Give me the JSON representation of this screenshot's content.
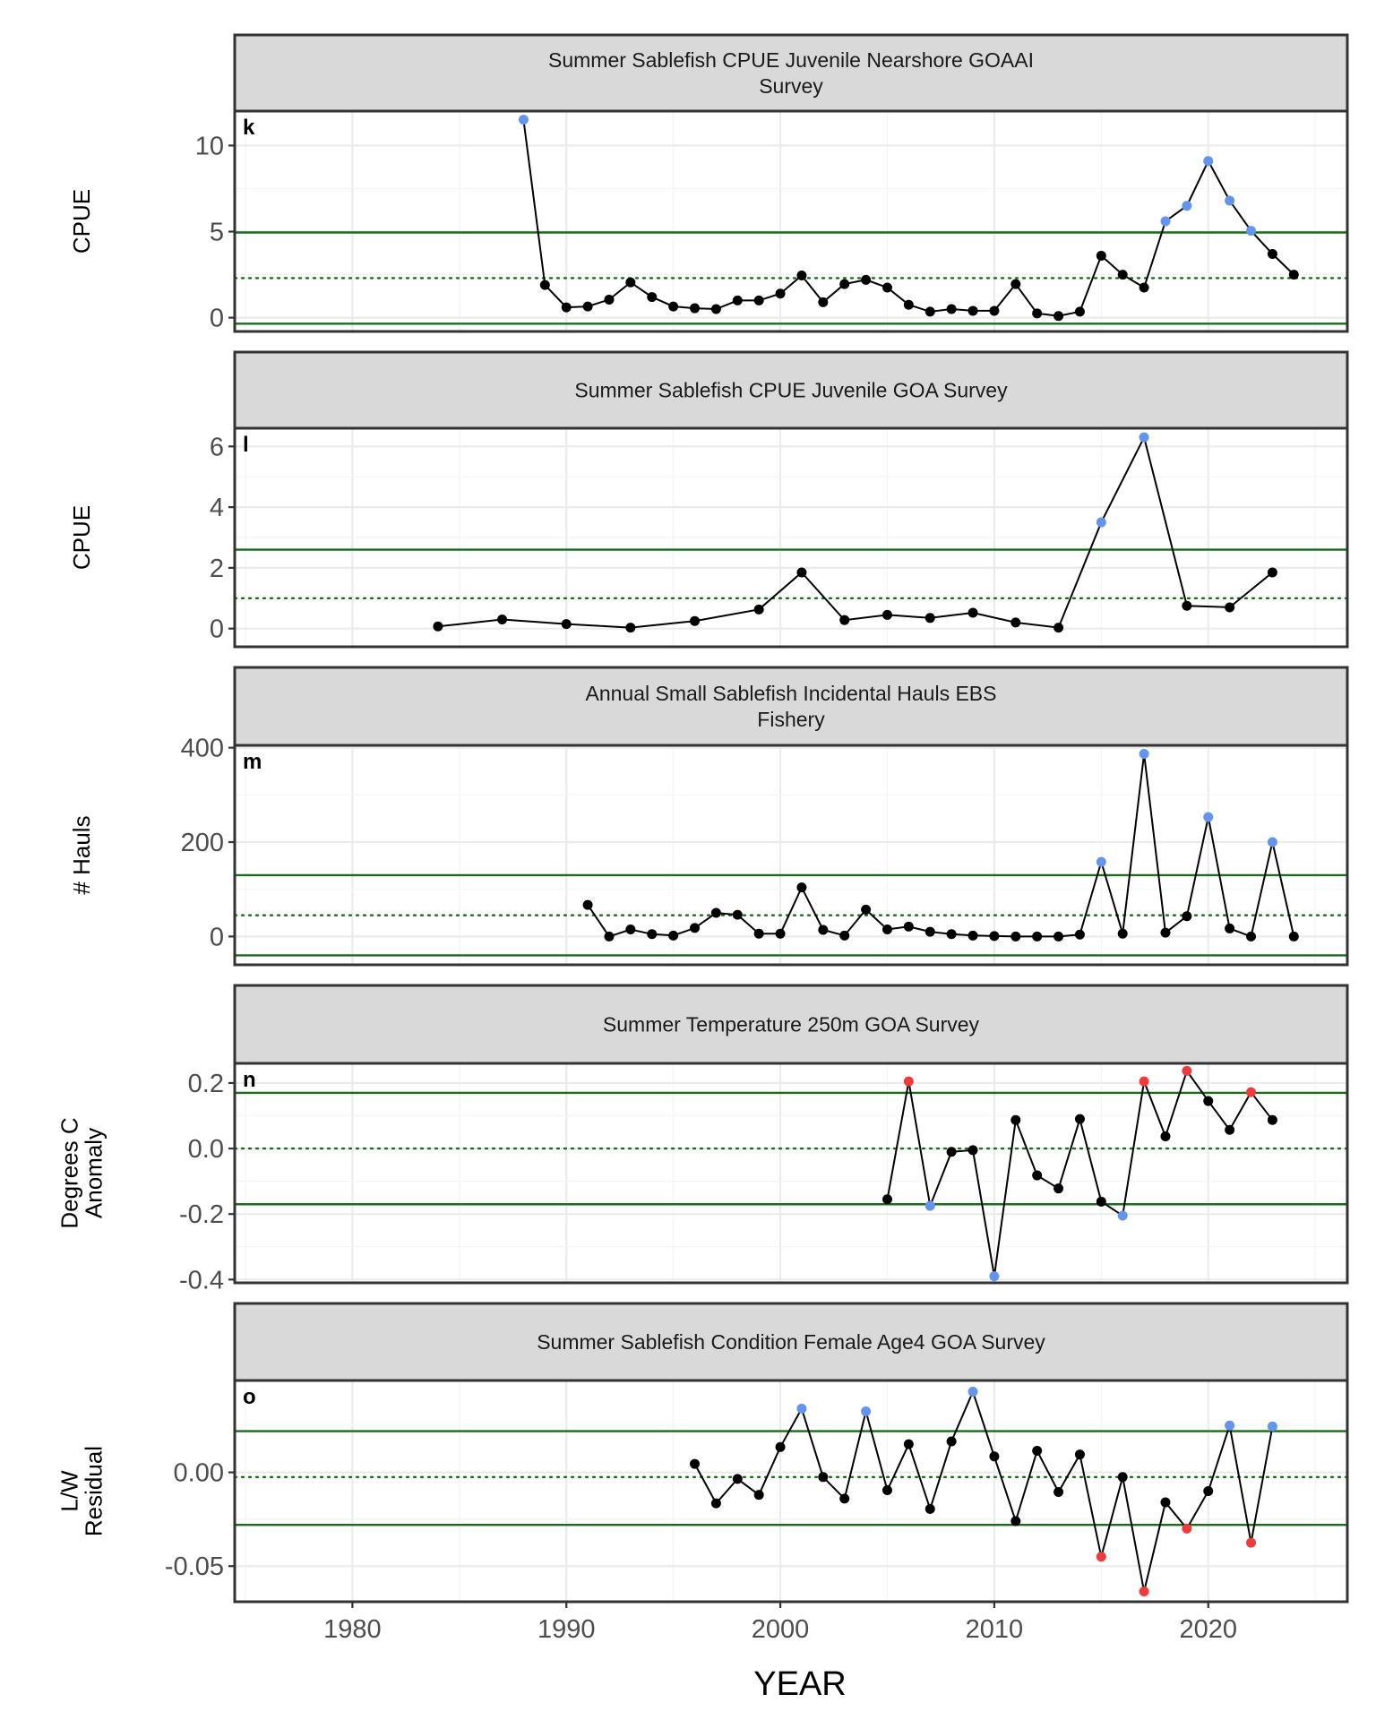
{
  "colors": {
    "normal": "#000000",
    "high": "#6495ED",
    "low": "#EE3B3B",
    "reference": "#1a6b1a",
    "strip": "#d9d9d9"
  },
  "x_axis": {
    "title": "YEAR",
    "range": [
      1974.5,
      2026.5
    ],
    "ticks": [
      1980,
      1990,
      2000,
      2010,
      2020
    ]
  },
  "chart_data": [
    {
      "type": "line",
      "panel": "k",
      "title_lines": [
        "Summer Sablefish CPUE Juvenile Nearshore GOAAI",
        "Survey"
      ],
      "ylabel_lines": [
        "CPUE"
      ],
      "ylim": [
        -0.8,
        12.0
      ],
      "yticks": [
        0,
        5,
        10
      ],
      "ytick_labels": [
        "0",
        "5",
        "10"
      ],
      "mean": 2.3,
      "upper": 4.95,
      "lower": -0.35,
      "x": [
        1988,
        1989,
        1990,
        1991,
        1992,
        1993,
        1994,
        1995,
        1996,
        1997,
        1998,
        1999,
        2000,
        2001,
        2002,
        2003,
        2004,
        2005,
        2006,
        2007,
        2008,
        2009,
        2010,
        2011,
        2012,
        2013,
        2014,
        2015,
        2016,
        2017,
        2018,
        2019,
        2020,
        2021,
        2022,
        2023,
        2024
      ],
      "y": [
        11.5,
        1.9,
        0.6,
        0.65,
        1.05,
        2.05,
        1.2,
        0.65,
        0.55,
        0.5,
        1.0,
        1.0,
        1.4,
        2.45,
        0.9,
        1.95,
        2.2,
        1.75,
        0.75,
        0.35,
        0.5,
        0.4,
        0.4,
        1.95,
        0.25,
        0.1,
        0.35,
        3.6,
        2.5,
        1.75,
        5.6,
        6.5,
        9.1,
        6.8,
        5.05,
        3.7,
        2.5
      ],
      "flags": [
        "high",
        "normal",
        "normal",
        "normal",
        "normal",
        "normal",
        "normal",
        "normal",
        "normal",
        "normal",
        "normal",
        "normal",
        "normal",
        "normal",
        "normal",
        "normal",
        "normal",
        "normal",
        "normal",
        "normal",
        "normal",
        "normal",
        "normal",
        "normal",
        "normal",
        "normal",
        "normal",
        "normal",
        "normal",
        "normal",
        "high",
        "high",
        "high",
        "high",
        "high",
        "normal",
        "normal"
      ]
    },
    {
      "type": "line",
      "panel": "l",
      "title_lines": [
        "Summer Sablefish CPUE Juvenile GOA Survey"
      ],
      "ylabel_lines": [
        "CPUE"
      ],
      "ylim": [
        -0.6,
        6.6
      ],
      "yticks": [
        0,
        2,
        4,
        6
      ],
      "ytick_labels": [
        "0",
        "2",
        "4",
        "6"
      ],
      "mean": 1.0,
      "upper": 2.6,
      "lower": -0.6,
      "x": [
        1984,
        1987,
        1990,
        1993,
        1996,
        1999,
        2001,
        2003,
        2005,
        2007,
        2009,
        2011,
        2013,
        2015,
        2017,
        2019,
        2021,
        2023
      ],
      "y": [
        0.07,
        0.3,
        0.15,
        0.03,
        0.25,
        0.63,
        1.85,
        0.28,
        0.45,
        0.35,
        0.52,
        0.2,
        0.03,
        3.5,
        6.3,
        0.75,
        0.7,
        1.85
      ],
      "flags": [
        "normal",
        "normal",
        "normal",
        "normal",
        "normal",
        "normal",
        "normal",
        "normal",
        "normal",
        "normal",
        "normal",
        "normal",
        "normal",
        "high",
        "high",
        "normal",
        "normal",
        "normal"
      ]
    },
    {
      "type": "line",
      "panel": "m",
      "title_lines": [
        "Annual Small Sablefish Incidental Hauls EBS",
        "Fishery"
      ],
      "ylabel_lines": [
        "# Hauls"
      ],
      "ylim": [
        -60,
        405
      ],
      "yticks": [
        0,
        200,
        400
      ],
      "ytick_labels": [
        "0",
        "200",
        "400"
      ],
      "mean": 45,
      "upper": 130,
      "lower": -40,
      "x": [
        1991,
        1992,
        1993,
        1994,
        1995,
        1996,
        1997,
        1998,
        1999,
        2000,
        2001,
        2002,
        2003,
        2004,
        2005,
        2006,
        2007,
        2008,
        2009,
        2010,
        2011,
        2012,
        2013,
        2014,
        2015,
        2016,
        2017,
        2018,
        2019,
        2020,
        2021,
        2022,
        2023,
        2024
      ],
      "y": [
        67,
        0,
        15,
        5,
        2,
        18,
        50,
        46,
        6,
        6,
        104,
        14,
        2,
        57,
        15,
        21,
        10,
        5,
        2,
        1,
        0,
        0,
        0,
        4,
        158,
        6,
        387,
        8,
        43,
        253,
        17,
        0,
        200,
        0
      ],
      "flags": [
        "normal",
        "normal",
        "normal",
        "normal",
        "normal",
        "normal",
        "normal",
        "normal",
        "normal",
        "normal",
        "normal",
        "normal",
        "normal",
        "normal",
        "normal",
        "normal",
        "normal",
        "normal",
        "normal",
        "normal",
        "normal",
        "normal",
        "normal",
        "normal",
        "high",
        "normal",
        "high",
        "normal",
        "normal",
        "high",
        "normal",
        "normal",
        "high",
        "normal"
      ]
    },
    {
      "type": "line",
      "panel": "n",
      "title_lines": [
        "Summer Temperature 250m GOA Survey"
      ],
      "ylabel_lines": [
        "Degrees C",
        "Anomaly"
      ],
      "ylim": [
        -0.41,
        0.26
      ],
      "yticks": [
        -0.4,
        -0.2,
        0.0,
        0.2
      ],
      "ytick_labels": [
        "-0.4",
        "-0.2",
        "0.0",
        "0.2"
      ],
      "mean": 0.0,
      "upper": 0.17,
      "lower": -0.17,
      "x": [
        2005,
        2006,
        2007,
        2008,
        2009,
        2010,
        2011,
        2012,
        2013,
        2014,
        2015,
        2016,
        2017,
        2018,
        2019,
        2020,
        2021,
        2022,
        2023
      ],
      "y": [
        -0.155,
        0.205,
        -0.175,
        -0.01,
        -0.005,
        -0.39,
        0.087,
        -0.082,
        -0.122,
        0.09,
        -0.162,
        -0.205,
        0.205,
        0.037,
        0.237,
        0.145,
        0.057,
        0.172,
        0.087
      ],
      "flags": [
        "normal",
        "low",
        "high",
        "normal",
        "normal",
        "high",
        "normal",
        "normal",
        "normal",
        "normal",
        "normal",
        "high",
        "low",
        "normal",
        "low",
        "normal",
        "normal",
        "low",
        "normal"
      ]
    },
    {
      "type": "line",
      "panel": "o",
      "title_lines": [
        "Summer Sablefish Condition Female Age4 GOA Survey"
      ],
      "ylabel_lines": [
        "L/W",
        "Residual"
      ],
      "ylim": [
        -0.069,
        0.049
      ],
      "yticks": [
        -0.05,
        0.0
      ],
      "ytick_labels": [
        "-0.05",
        "0.00"
      ],
      "mean": -0.0025,
      "upper": 0.022,
      "lower": -0.028,
      "x": [
        1996,
        1997,
        1998,
        1999,
        2000,
        2001,
        2002,
        2003,
        2004,
        2005,
        2006,
        2007,
        2008,
        2009,
        2010,
        2011,
        2012,
        2013,
        2014,
        2015,
        2016,
        2017,
        2018,
        2019,
        2020,
        2021,
        2022,
        2023
      ],
      "y": [
        0.0045,
        -0.0165,
        -0.0035,
        -0.012,
        0.0135,
        0.034,
        -0.0025,
        -0.014,
        0.0325,
        -0.0095,
        0.015,
        -0.0195,
        0.0165,
        0.043,
        0.0085,
        -0.026,
        0.0115,
        -0.0105,
        0.0095,
        -0.045,
        -0.0025,
        -0.0635,
        -0.016,
        -0.03,
        -0.01,
        0.025,
        -0.0375,
        0.0245
      ],
      "flags": [
        "normal",
        "normal",
        "normal",
        "normal",
        "normal",
        "high",
        "normal",
        "normal",
        "high",
        "normal",
        "normal",
        "normal",
        "normal",
        "high",
        "normal",
        "normal",
        "normal",
        "normal",
        "normal",
        "low",
        "normal",
        "low",
        "normal",
        "low",
        "normal",
        "high",
        "low",
        "high"
      ]
    }
  ]
}
